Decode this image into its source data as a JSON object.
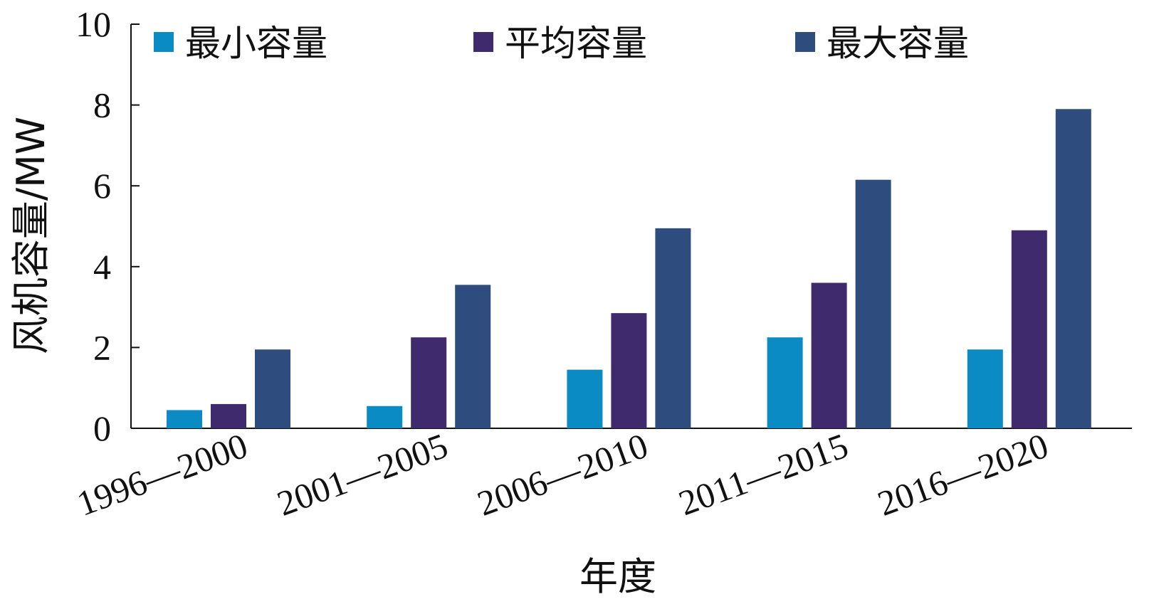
{
  "chart_data": {
    "type": "bar",
    "categories": [
      "1996—2000",
      "2001—2005",
      "2006—2010",
      "2011—2015",
      "2016—2020"
    ],
    "series": [
      {
        "name": "最小容量",
        "color": "#0b8bc4",
        "values": [
          0.45,
          0.55,
          1.45,
          2.25,
          1.95
        ]
      },
      {
        "name": "平均容量",
        "color": "#3f2a6e",
        "values": [
          0.6,
          2.25,
          2.85,
          3.6,
          4.9
        ]
      },
      {
        "name": "最大容量",
        "color": "#2f4c7e",
        "values": [
          1.95,
          3.55,
          4.95,
          6.15,
          7.9
        ]
      }
    ],
    "xlabel": "年度",
    "ylabel": "风机容量/MW",
    "ylim": [
      0,
      10
    ],
    "yticks": [
      "0",
      "2",
      "4",
      "6",
      "8",
      "10"
    ],
    "legend_position": "top",
    "grid": false
  }
}
